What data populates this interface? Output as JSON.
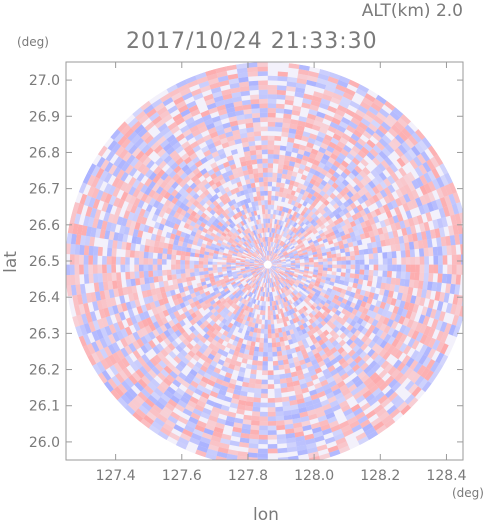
{
  "chart_data": {
    "type": "heatmap",
    "subtype": "polar-radar-scan",
    "title": "2017/10/24 21:33:30",
    "altitude_label": "ALT(km) 2.0",
    "xlabel": "lon",
    "ylabel": "lat",
    "x_unit": "(deg)",
    "y_unit": "(deg)",
    "xlim": [
      127.25,
      128.45
    ],
    "ylim": [
      25.95,
      27.05
    ],
    "x_ticks": [
      "127.4",
      "127.6",
      "127.8",
      "128.0",
      "128.2",
      "128.4"
    ],
    "y_ticks": [
      "27.0",
      "26.9",
      "26.8",
      "26.7",
      "26.6",
      "26.5",
      "26.4",
      "26.3",
      "26.2",
      "26.1",
      "26.0"
    ],
    "center": {
      "lon": 127.86,
      "lat": 26.49
    },
    "radius_deg_lat": 0.56,
    "colors": {
      "positive": "#ff9c9c",
      "negative": "#9ca6ff",
      "neutral": "#ffffff",
      "frame": "#9a9a9a",
      "text": "#7a7a7a"
    },
    "grid": false
  }
}
